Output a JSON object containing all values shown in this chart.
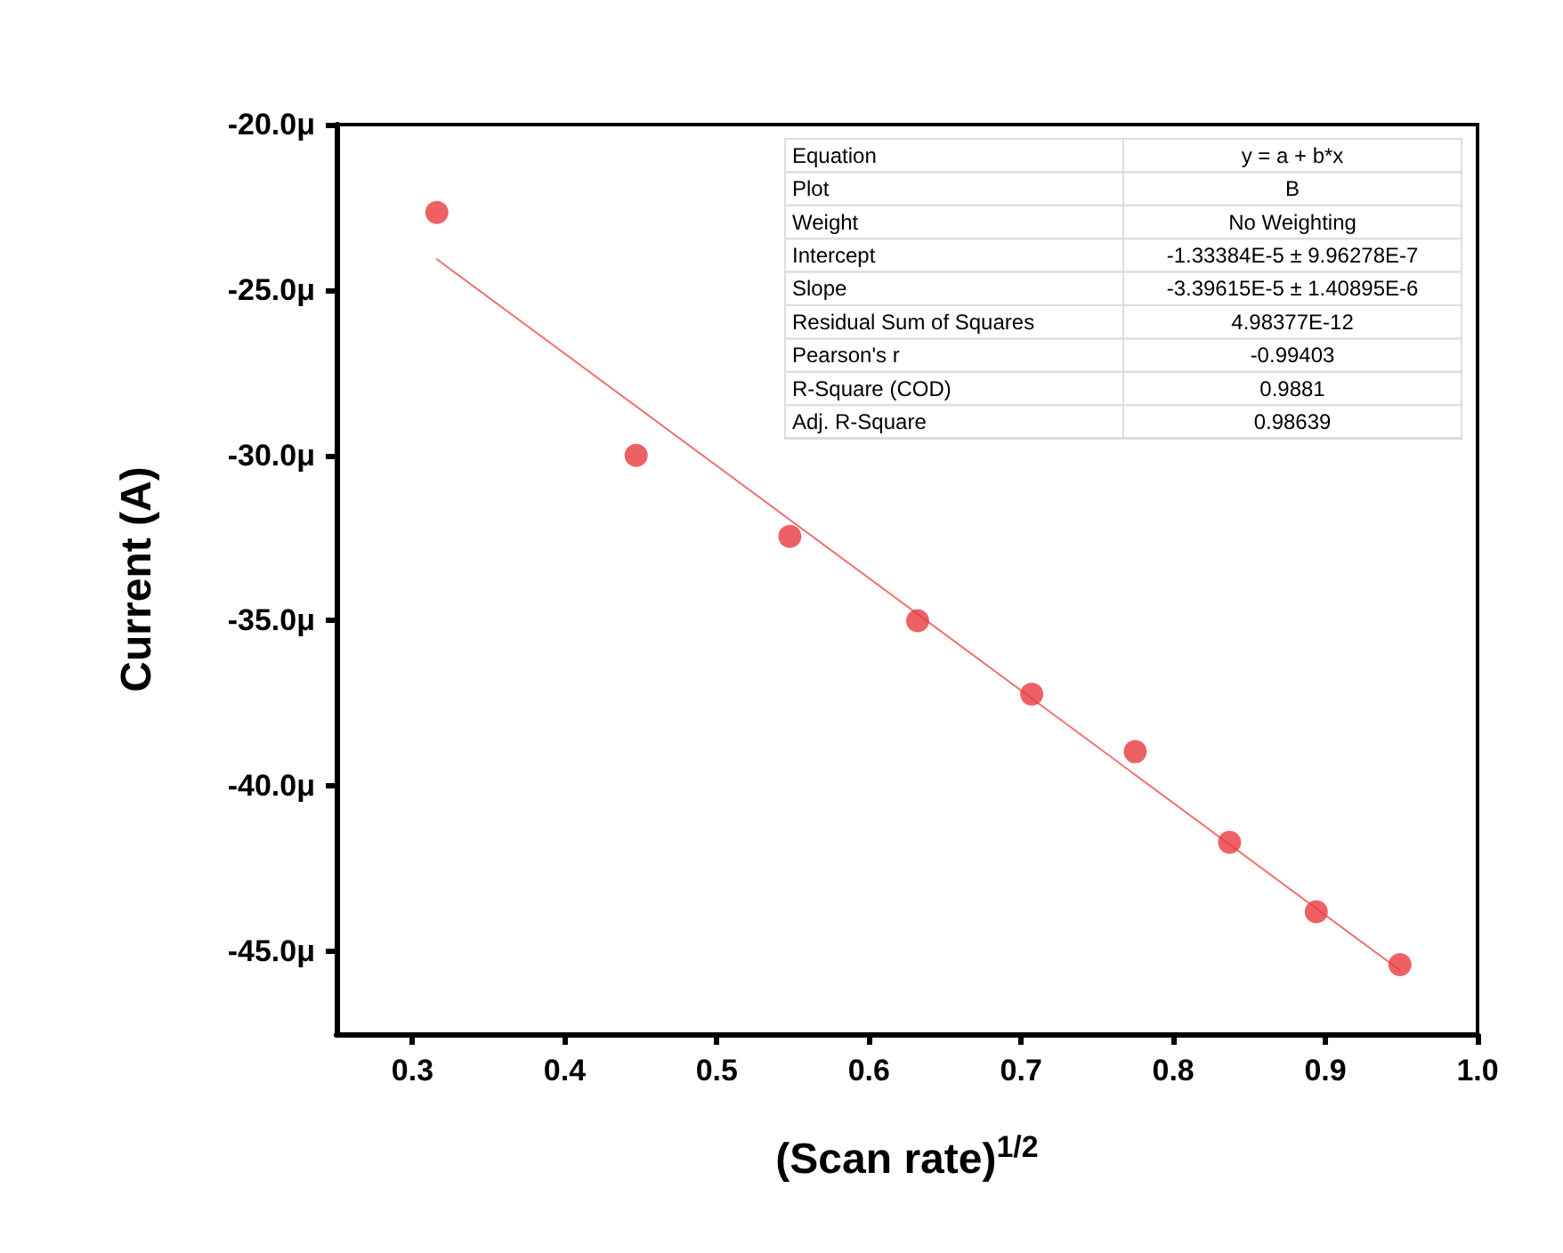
{
  "chart_data": {
    "type": "scatter",
    "xlabel": "(Scan rate)$^{1/2}$",
    "ylabel": "Current (A)",
    "x": [
      0.316,
      0.447,
      0.548,
      0.632,
      0.707,
      0.775,
      0.837,
      0.894,
      0.949
    ],
    "series": [
      {
        "color": "#e8393f",
        "marker": "circle",
        "values": [
          -22.66,
          -30.0,
          -32.45,
          -35.0,
          -37.22,
          -38.96,
          -41.7,
          -43.8,
          -45.4
        ]
      },
      {
        "type": "line",
        "marker": "none",
        "color": "#f07070",
        "x": [
          0.316,
          0.949
        ],
        "values": [
          -24.07,
          -45.57
        ]
      }
    ],
    "line_style": "solid",
    "xlim": [
      0.25,
      1.0
    ],
    "xticks": [
      0.3,
      0.4,
      0.5,
      0.6,
      0.7,
      0.8,
      0.9,
      {
        "value": 1.0,
        "label": "1.0"
      }
    ],
    "ylim": [
      -47.5,
      -20
    ],
    "yticks": [
      {
        "value": -20,
        "label": "-20.0μ"
      },
      {
        "value": -25,
        "label": "-25.0μ"
      },
      {
        "value": -30,
        "label": "-30.0μ"
      },
      {
        "value": -35,
        "label": "-35.0μ"
      },
      {
        "value": -40,
        "label": "-40.0μ"
      },
      {
        "value": -45,
        "label": "-45.0μ"
      }
    ],
    "grid": false,
    "annotations": [
      "Equation",
      "y = a + b*x",
      "Plot",
      "B",
      "Weight",
      "No Weighting",
      "Intercept",
      "-1.33384E-5 ± 9.96278E-7",
      "Slope",
      "-3.39615E-5 ± 1.40895E-6",
      "Residual Sum of Squares",
      "4.98377E-12",
      "Pearson's r",
      "-0.99403",
      "R-Square (COD)",
      "0.9881",
      "Adj. R-Square",
      "0.98639"
    ]
  }
}
